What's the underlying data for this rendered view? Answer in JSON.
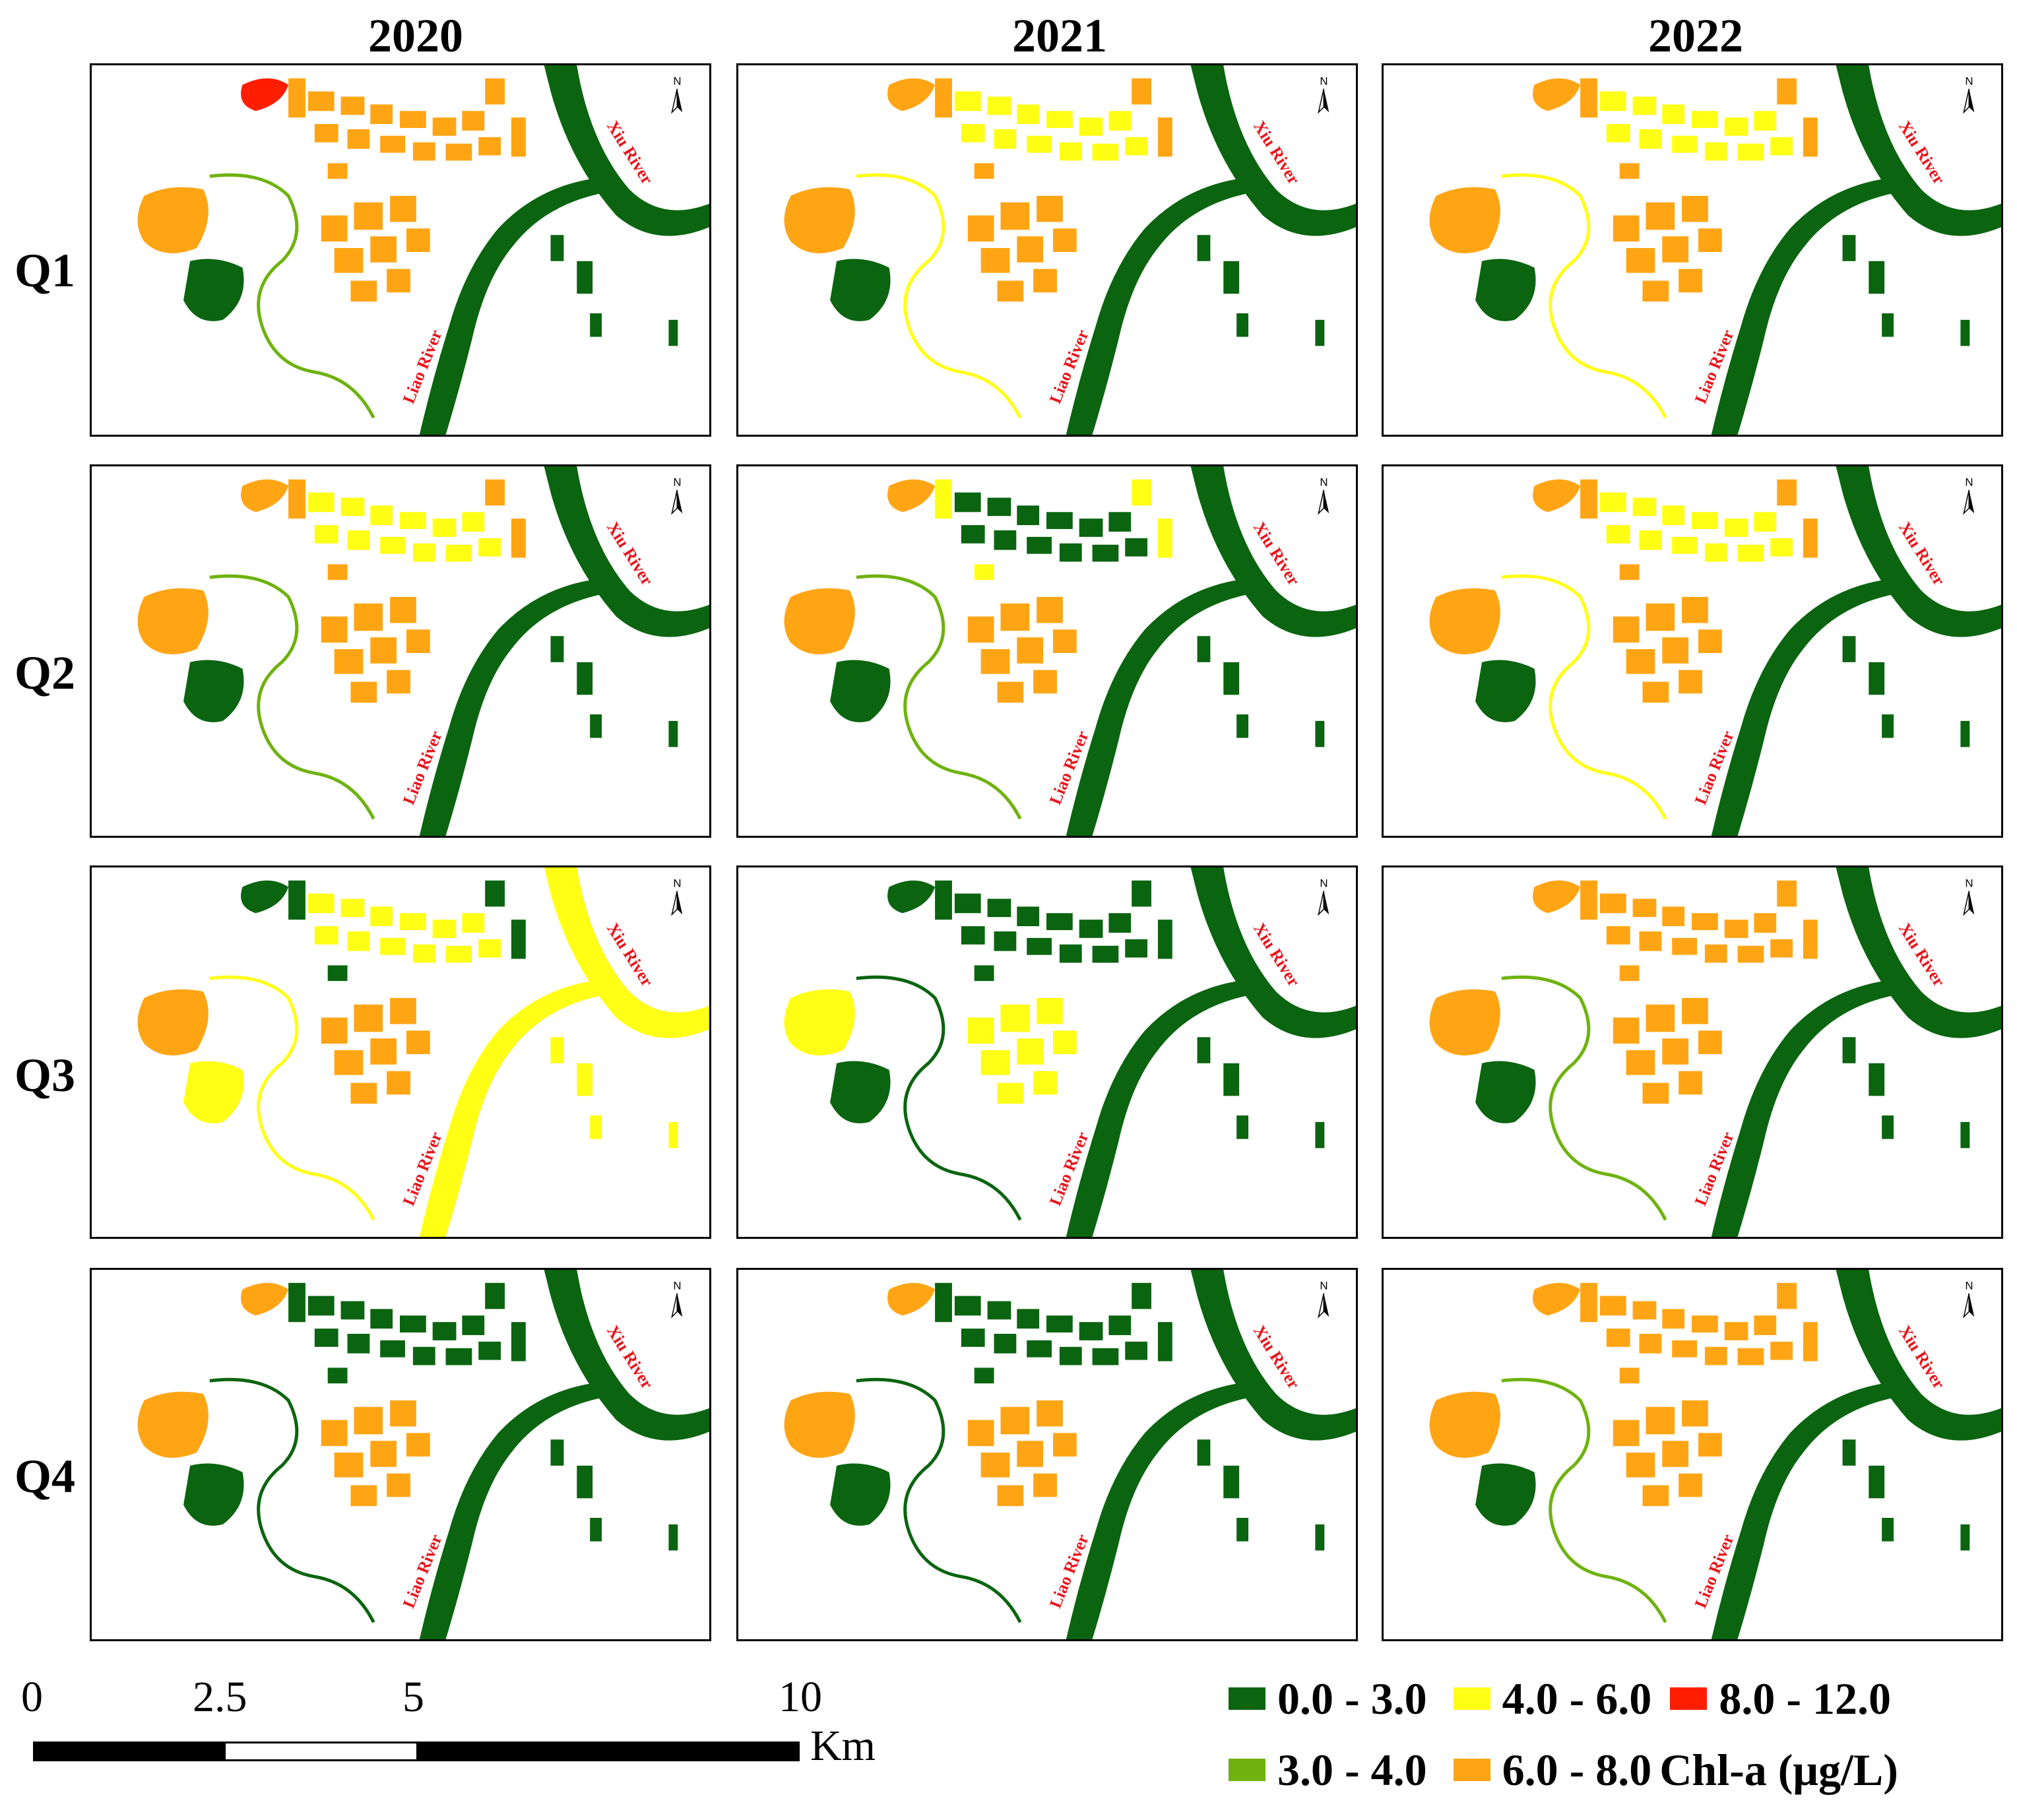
{
  "columns": [
    "2020",
    "2021",
    "2022"
  ],
  "rows": [
    "Q1",
    "Q2",
    "Q3",
    "Q4"
  ],
  "river_labels": {
    "xiu": "Xiu River",
    "liao": "Liao River"
  },
  "north_arrow": {
    "label": "N",
    "icon": "north-arrow-icon"
  },
  "scale_bar": {
    "ticks": [
      "0",
      "2.5",
      "5",
      "10"
    ],
    "unit": "Km"
  },
  "legend": {
    "title": "Chl-a (μg/L)",
    "classes": [
      {
        "range": "0.0 - 3.0",
        "color": "#0b6410"
      },
      {
        "range": "3.0 - 4.0",
        "color": "#6fb20f"
      },
      {
        "range": "4.0 - 6.0",
        "color": "#ffff16"
      },
      {
        "range": "6.0 - 8.0",
        "color": "#ffa514"
      },
      {
        "range": "8.0 - 12.0",
        "color": "#ff1f00"
      }
    ]
  },
  "panel_schemes": [
    [
      "c4",
      "c3",
      "c3",
      "c0",
      "c3",
      "c1"
    ],
    [
      "c3",
      "c2",
      "c3",
      "c0",
      "c3",
      "c2"
    ],
    [
      "c3",
      "c2",
      "c3",
      "c0",
      "c3",
      "c2"
    ],
    [
      "c3",
      "c2",
      "c3",
      "c0",
      "c3",
      "c1"
    ],
    [
      "c3",
      "c0",
      "c2",
      "c0",
      "c3",
      "c1"
    ],
    [
      "c3",
      "c2",
      "c3",
      "c0",
      "c3",
      "c2"
    ],
    [
      "c0",
      "c2",
      "c0",
      "c2",
      "c3",
      "c2"
    ],
    [
      "c0",
      "c0",
      "c0",
      "c0",
      "c2",
      "c0"
    ],
    [
      "c3",
      "c3",
      "c3",
      "c0",
      "c3",
      "c1"
    ],
    [
      "c3",
      "c0",
      "c0",
      "c0",
      "c3",
      "c0"
    ],
    [
      "c3",
      "c0",
      "c0",
      "c0",
      "c3",
      "c0"
    ],
    [
      "c3",
      "c3",
      "c3",
      "c0",
      "c3",
      "c1"
    ]
  ]
}
